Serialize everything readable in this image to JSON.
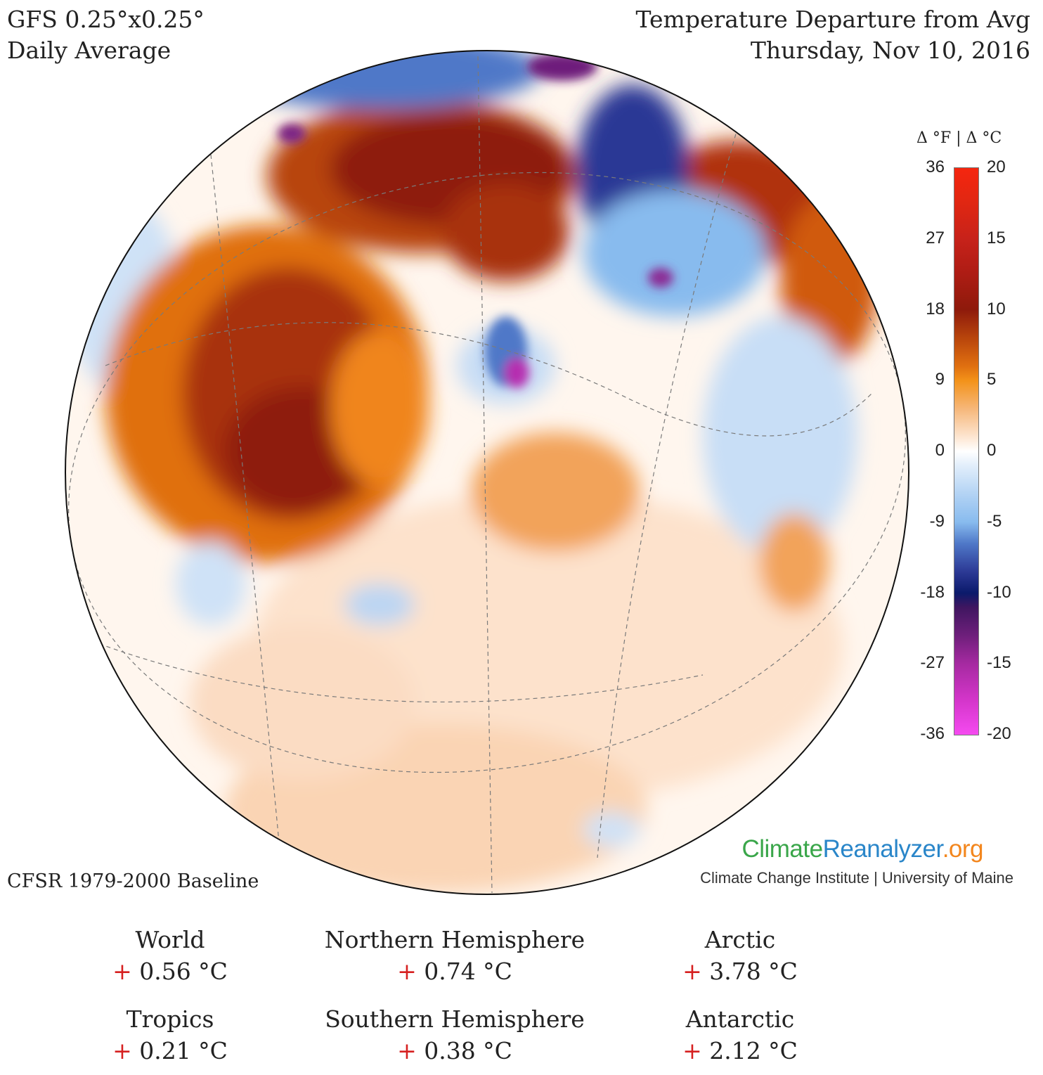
{
  "header": {
    "model": "GFS 0.25°x0.25°",
    "period": "Daily Average",
    "title": "Temperature Departure from Avg",
    "date": "Thursday, Nov 10, 2016"
  },
  "legend": {
    "units_label": "Δ °F  |  Δ °C",
    "fahrenheit_ticks": [
      "36",
      "27",
      "18",
      "9",
      "0",
      "-9",
      "-18",
      "-27",
      "-36"
    ],
    "celsius_ticks": [
      "20",
      "15",
      "10",
      "5",
      "0",
      "-5",
      "-10",
      "-15",
      "-20"
    ],
    "color_stops": [
      {
        "c": 20,
        "color": "#f5260f"
      },
      {
        "c": 17.5,
        "color": "#e02712"
      },
      {
        "c": 15,
        "color": "#c7221a"
      },
      {
        "c": 12.5,
        "color": "#ad1c14"
      },
      {
        "c": 10,
        "color": "#8e1a0b"
      },
      {
        "c": 8,
        "color": "#b8450c"
      },
      {
        "c": 6,
        "color": "#e07010"
      },
      {
        "c": 5,
        "color": "#f39219"
      },
      {
        "c": 3,
        "color": "#f6b77a"
      },
      {
        "c": 1,
        "color": "#fde6d2"
      },
      {
        "c": 0,
        "color": "#ffffff"
      },
      {
        "c": -1,
        "color": "#e2eefb"
      },
      {
        "c": -3,
        "color": "#b3d3f4"
      },
      {
        "c": -5,
        "color": "#88bbee"
      },
      {
        "c": -6.5,
        "color": "#4f78c8"
      },
      {
        "c": -8.5,
        "color": "#2c3995"
      },
      {
        "c": -10,
        "color": "#0b1a6b"
      },
      {
        "c": -11,
        "color": "#3f1660"
      },
      {
        "c": -13,
        "color": "#6e1f7b"
      },
      {
        "c": -15,
        "color": "#a62aa1"
      },
      {
        "c": -17.5,
        "color": "#d335c9"
      },
      {
        "c": -20,
        "color": "#f54af0"
      }
    ]
  },
  "map": {
    "projection": "orthographic, North Atlantic centered",
    "anomaly_colors": {
      "extreme_warm": "#8e1a0b",
      "strong_warm": "#b8450c",
      "warm": "#e07010",
      "mild_warm": "#f6b77a",
      "slight_warm": "#fde6d2",
      "slight_cool": "#d9e8fa",
      "cool": "#88bbee",
      "cold": "#2c3995",
      "extreme_cold": "#a62aa1"
    }
  },
  "footer": {
    "baseline": "CFSR 1979-2000 Baseline",
    "brand_part1": "Climate",
    "brand_part2": "Reanalyzer",
    "brand_part3": ".org",
    "affiliation": "Climate Change Institute | University of Maine"
  },
  "stats": [
    {
      "name": "World",
      "sign": "+",
      "value": "0.56 °C"
    },
    {
      "name": "Northern Hemisphere",
      "sign": "+",
      "value": "0.74 °C"
    },
    {
      "name": "Arctic",
      "sign": "+",
      "value": "3.78 °C"
    },
    {
      "name": "Tropics",
      "sign": "+",
      "value": "0.21 °C"
    },
    {
      "name": "Southern Hemisphere",
      "sign": "+",
      "value": "0.38 °C"
    },
    {
      "name": "Antarctic",
      "sign": "+",
      "value": "2.12 °C"
    }
  ]
}
